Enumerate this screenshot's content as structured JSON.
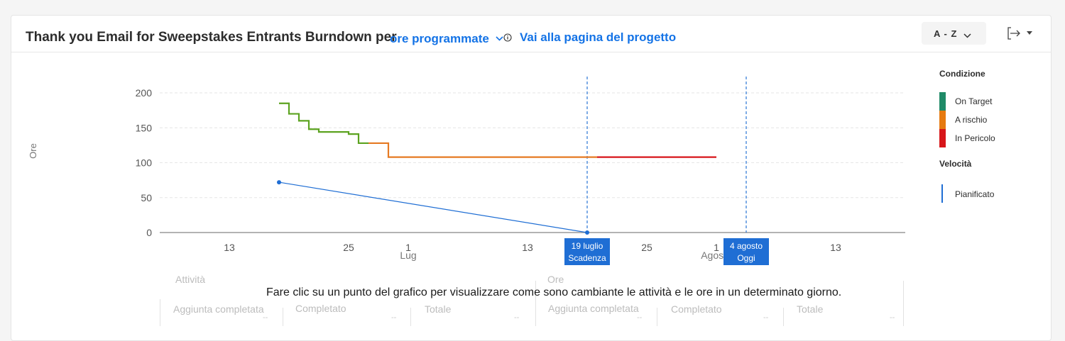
{
  "header": {
    "title": "Thank you Email for Sweepstakes Entrants Burndown per",
    "metric": "ore programmate",
    "project_link": "Vai alla pagina del progetto",
    "sort_label": "A - Z"
  },
  "chart_data": {
    "type": "line",
    "ylabel": "Ore",
    "ylim": [
      0,
      200
    ],
    "y_ticks": [
      0,
      50,
      100,
      150,
      200
    ],
    "x_ticks": [
      {
        "date": "2024-06-13",
        "label": "13"
      },
      {
        "date": "2024-06-25",
        "label": "25"
      },
      {
        "date": "2024-07-01",
        "label": "1",
        "sub": "Lug"
      },
      {
        "date": "2024-07-13",
        "label": "13"
      },
      {
        "date": "2024-07-25",
        "label": "25"
      },
      {
        "date": "2024-08-01",
        "label": "1",
        "sub": "Agosto"
      },
      {
        "date": "2024-08-13",
        "label": "13"
      }
    ],
    "xlim": [
      "2024-06-06",
      "2024-08-20"
    ],
    "markers": [
      {
        "date": "2024-07-19",
        "title": "19 luglio",
        "subtitle": "Scadenza"
      },
      {
        "date": "2024-08-04",
        "title": "4 agosto",
        "subtitle": "Oggi"
      }
    ],
    "series": [
      {
        "name": "On Target",
        "color": "#5ca320",
        "step": true,
        "points": [
          [
            "2024-06-18",
            185
          ],
          [
            "2024-06-19",
            170
          ],
          [
            "2024-06-20",
            160
          ],
          [
            "2024-06-21",
            148
          ],
          [
            "2024-06-22",
            144
          ],
          [
            "2024-06-25",
            141
          ],
          [
            "2024-06-26",
            128
          ],
          [
            "2024-06-27",
            128
          ]
        ]
      },
      {
        "name": "A rischio",
        "color": "#e67a23",
        "step": true,
        "points": [
          [
            "2024-06-27",
            128
          ],
          [
            "2024-06-29",
            108
          ],
          [
            "2024-07-20",
            108
          ]
        ]
      },
      {
        "name": "In Pericolo",
        "color": "#d7161a",
        "step": true,
        "points": [
          [
            "2024-07-20",
            108
          ],
          [
            "2024-08-01",
            108
          ]
        ]
      },
      {
        "name": "Pianificato",
        "color": "#1f6ed4",
        "step": false,
        "points": [
          [
            "2024-06-18",
            72
          ],
          [
            "2024-07-19",
            0
          ]
        ]
      }
    ],
    "legend": {
      "placement": "right",
      "condition_title": "Condizione",
      "condition_items": [
        {
          "label": "On Target",
          "color": "#1f8a67"
        },
        {
          "label": "A rischio",
          "color": "#e67a10"
        },
        {
          "label": "In Pericolo",
          "color": "#d7161a"
        }
      ],
      "velocity_title": "Velocità",
      "velocity_items": [
        {
          "label": "Pianificato",
          "color": "#1f6ed4"
        }
      ]
    },
    "grid": true
  },
  "summary": {
    "group_attivita": "Attività",
    "group_ore": "Ore",
    "attivita_cols": [
      "Aggiunta completata",
      "Completato",
      "Totale"
    ],
    "ore_cols": [
      "Aggiunta completata",
      "Completato",
      "Totale"
    ],
    "placeholder": "--",
    "hint": "Fare clic su un punto del grafico per visualizzare come sono cambiante le attività e le ore in un determinato giorno."
  }
}
